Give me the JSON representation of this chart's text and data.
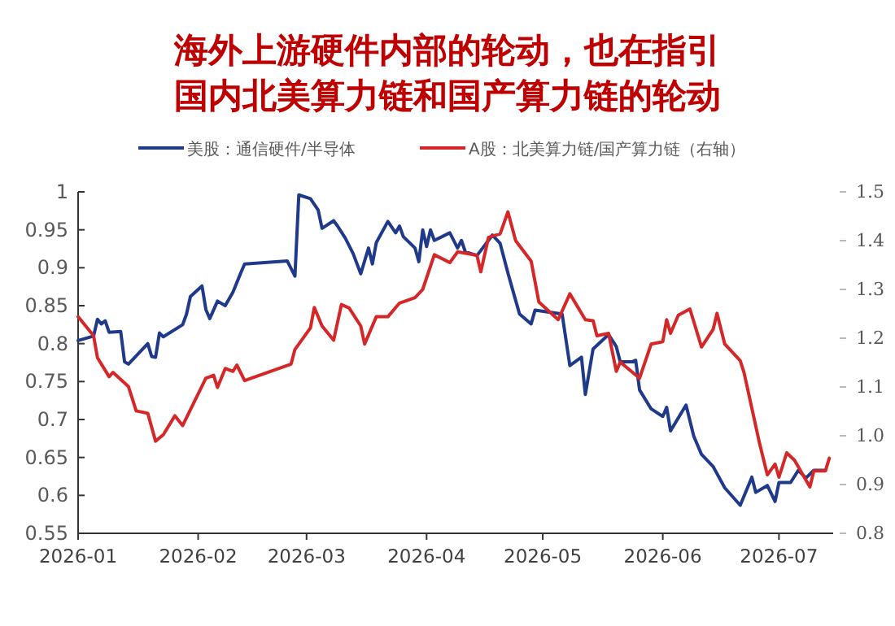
{
  "chart_data": {
    "type": "line",
    "title": "海外上游硬件内部的轮动，也在指引国内北美算力链和国产算力链的轮动",
    "legend": "top",
    "grid": false,
    "marker": "none",
    "line_style": "solid",
    "xlim": [
      "2026-01-01",
      "2026-07-15"
    ],
    "xticks": [
      {
        "value": "2026-01-01",
        "label": "2026-01"
      },
      {
        "value": "2026-02-01",
        "label": "2026-02"
      },
      {
        "value": "2026-03-01",
        "label": "2026-03"
      },
      {
        "value": "2026-04-01",
        "label": "2026-04"
      },
      {
        "value": "2026-05-01",
        "label": "2026-05"
      },
      {
        "value": "2026-06-01",
        "label": "2026-06"
      },
      {
        "value": "2026-07-01",
        "label": "2026-07"
      }
    ],
    "ylim": [
      0.55,
      1
    ],
    "yticks": [
      0.55,
      0.6,
      0.65,
      0.7,
      0.75,
      0.8,
      0.85,
      0.9,
      0.95,
      1
    ],
    "y2lim": [
      0.8,
      1.5
    ],
    "y2ticks": [
      0.8,
      0.9,
      {
        "value": 1,
        "label": "1.0"
      },
      1.1,
      1.2,
      1.3,
      1.4,
      1.5
    ],
    "series": [
      {
        "name": "美股：通信硬件/半导体",
        "color": "#1f3a8a",
        "x": [
          "2026-01-01",
          "2026-01-05",
          "2026-01-06",
          "2026-01-07",
          "2026-01-08",
          "2026-01-09",
          "2026-01-12",
          "2026-01-13",
          "2026-01-14",
          "2026-01-19",
          "2026-01-20",
          "2026-01-21",
          "2026-01-22",
          "2026-01-23",
          "2026-01-28",
          "2026-01-29",
          "2026-01-30",
          "2026-02-02",
          "2026-02-03",
          "2026-02-04",
          "2026-02-06",
          "2026-02-08",
          "2026-02-10",
          "2026-02-12",
          "2026-02-13",
          "2026-02-24",
          "2026-02-26",
          "2026-02-27",
          "2026-03-02",
          "2026-03-04",
          "2026-03-05",
          "2026-03-08",
          "2026-03-09",
          "2026-03-11",
          "2026-03-13",
          "2026-03-15",
          "2026-03-17",
          "2026-03-18",
          "2026-03-19",
          "2026-03-22",
          "2026-03-24",
          "2026-03-25",
          "2026-03-26",
          "2026-03-29",
          "2026-03-30",
          "2026-03-31",
          "2026-04-01",
          "2026-04-02",
          "2026-04-03",
          "2026-04-07",
          "2026-04-09",
          "2026-04-10",
          "2026-04-11",
          "2026-04-14",
          "2026-04-18",
          "2026-04-20",
          "2026-04-22",
          "2026-04-23",
          "2026-04-25",
          "2026-04-28",
          "2026-04-29",
          "2026-05-06",
          "2026-05-08",
          "2026-05-11",
          "2026-05-12",
          "2026-05-14",
          "2026-05-18",
          "2026-05-20",
          "2026-05-21",
          "2026-05-24",
          "2026-05-25",
          "2026-05-26",
          "2026-05-29",
          "2026-06-01",
          "2026-06-02",
          "2026-06-03",
          "2026-06-07",
          "2026-06-09",
          "2026-06-11",
          "2026-06-14",
          "2026-06-17",
          "2026-06-21",
          "2026-06-24",
          "2026-06-25",
          "2026-06-28",
          "2026-06-30",
          "2026-07-01",
          "2026-07-04",
          "2026-07-06",
          "2026-07-08",
          "2026-07-10",
          "2026-07-13"
        ],
        "values": [
          0.804,
          0.81,
          0.832,
          0.826,
          0.83,
          0.815,
          0.816,
          0.776,
          0.773,
          0.8,
          0.783,
          0.782,
          0.814,
          0.809,
          0.825,
          0.839,
          0.862,
          0.876,
          0.845,
          0.833,
          0.856,
          0.85,
          0.868,
          0.893,
          0.905,
          0.909,
          0.889,
          0.996,
          0.991,
          0.976,
          0.952,
          0.962,
          0.955,
          0.939,
          0.919,
          0.892,
          0.926,
          0.905,
          0.933,
          0.961,
          0.946,
          0.955,
          0.941,
          0.926,
          0.908,
          0.95,
          0.928,
          0.95,
          0.936,
          0.946,
          0.926,
          0.936,
          0.921,
          0.916,
          0.943,
          0.932,
          0.893,
          0.875,
          0.839,
          0.826,
          0.844,
          0.839,
          0.771,
          0.782,
          0.733,
          0.793,
          0.812,
          0.796,
          0.776,
          0.776,
          0.778,
          0.739,
          0.714,
          0.704,
          0.716,
          0.685,
          0.719,
          0.678,
          0.654,
          0.638,
          0.61,
          0.587,
          0.624,
          0.604,
          0.613,
          0.592,
          0.617,
          0.617,
          0.633,
          0.623,
          0.633,
          0.633
        ]
      },
      {
        "name": "A股：北美算力链/国产算力链（右轴）",
        "color": "#d62728",
        "axis": "y2",
        "x": [
          "2026-01-01",
          "2026-01-05",
          "2026-01-06",
          "2026-01-09",
          "2026-01-10",
          "2026-01-14",
          "2026-01-16",
          "2026-01-19",
          "2026-01-21",
          "2026-01-23",
          "2026-01-26",
          "2026-01-28",
          "2026-02-03",
          "2026-02-05",
          "2026-02-06",
          "2026-02-08",
          "2026-02-10",
          "2026-02-11",
          "2026-02-13",
          "2026-02-25",
          "2026-02-26",
          "2026-03-02",
          "2026-03-03",
          "2026-03-05",
          "2026-03-08",
          "2026-03-10",
          "2026-03-12",
          "2026-03-15",
          "2026-03-16",
          "2026-03-19",
          "2026-03-22",
          "2026-03-25",
          "2026-03-29",
          "2026-03-31",
          "2026-04-03",
          "2026-04-07",
          "2026-04-09",
          "2026-04-14",
          "2026-04-15",
          "2026-04-17",
          "2026-04-20",
          "2026-04-22",
          "2026-04-24",
          "2026-04-28",
          "2026-04-30",
          "2026-05-05",
          "2026-05-08",
          "2026-05-12",
          "2026-05-14",
          "2026-05-15",
          "2026-05-18",
          "2026-05-20",
          "2026-05-21",
          "2026-05-26",
          "2026-05-29",
          "2026-06-01",
          "2026-06-02",
          "2026-06-03",
          "2026-06-05",
          "2026-06-08",
          "2026-06-11",
          "2026-06-14",
          "2026-06-15",
          "2026-06-17",
          "2026-06-21",
          "2026-06-22",
          "2026-06-26",
          "2026-06-28",
          "2026-06-30",
          "2026-07-01",
          "2026-07-03",
          "2026-07-05",
          "2026-07-09",
          "2026-07-10",
          "2026-07-13",
          "2026-07-14"
        ],
        "values": [
          1.244,
          1.205,
          1.16,
          1.121,
          1.13,
          1.101,
          1.051,
          1.046,
          0.989,
          1.002,
          1.041,
          1.021,
          1.118,
          1.124,
          1.099,
          1.138,
          1.132,
          1.145,
          1.113,
          1.147,
          1.177,
          1.221,
          1.263,
          1.225,
          1.196,
          1.269,
          1.262,
          1.225,
          1.188,
          1.244,
          1.244,
          1.272,
          1.283,
          1.3,
          1.371,
          1.355,
          1.377,
          1.37,
          1.336,
          1.407,
          1.414,
          1.459,
          1.4,
          1.358,
          1.274,
          1.238,
          1.291,
          1.238,
          1.236,
          1.205,
          1.21,
          1.132,
          1.151,
          1.118,
          1.188,
          1.193,
          1.238,
          1.21,
          1.247,
          1.26,
          1.182,
          1.218,
          1.251,
          1.188,
          1.154,
          1.129,
          0.984,
          0.92,
          0.942,
          0.915,
          0.965,
          0.95,
          0.895,
          0.928,
          0.928,
          0.954
        ]
      }
    ]
  }
}
